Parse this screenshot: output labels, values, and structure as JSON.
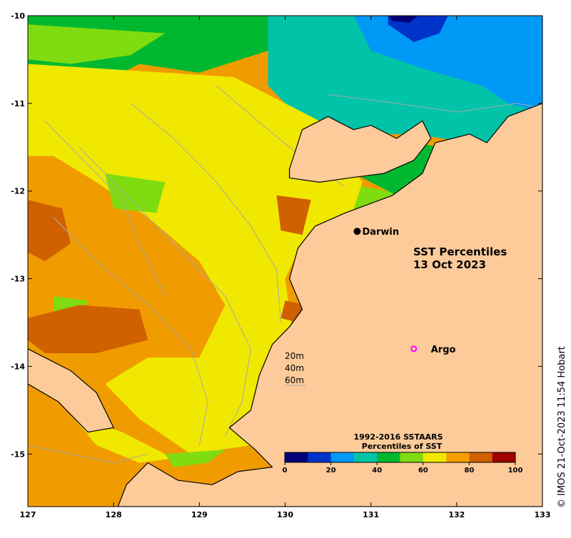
{
  "map": {
    "extent": {
      "lon_min": 127,
      "lon_max": 133,
      "lat_min": -15.6,
      "lat_max": -10
    },
    "land_color": "#fdcb9a",
    "ocean_base_color": "#f09c00",
    "x_ticks": [
      "127",
      "128",
      "129",
      "130",
      "131",
      "132",
      "133"
    ],
    "y_ticks": [
      "-10",
      "-11",
      "-12",
      "-13",
      "-14",
      "-15"
    ],
    "x_tick_values": [
      127,
      128,
      129,
      130,
      131,
      132,
      133
    ],
    "y_tick_values": [
      -10,
      -11,
      -12,
      -13,
      -14,
      -15
    ]
  },
  "title": {
    "line1": "SST Percentiles",
    "line2": "13 Oct 2023"
  },
  "places": {
    "darwin": {
      "label": "Darwin",
      "lon": 130.84,
      "lat": -12.46
    },
    "argo": {
      "label": "Argo",
      "lon": 131.5,
      "lat": -13.8,
      "marker_color": "#ff00ff"
    }
  },
  "depth_legend": {
    "d20": "20m",
    "d40": "40m",
    "d60": "60m"
  },
  "colorbar": {
    "title_line1": "1992-2016 SSTAARS",
    "title_line2": "Percentiles of SST",
    "colors": [
      "#00007a",
      "#0033c8",
      "#0099f5",
      "#00c3a8",
      "#00b830",
      "#7fdc10",
      "#f0e800",
      "#f5a000",
      "#d06000",
      "#a00000"
    ],
    "tick_labels": [
      "0",
      "20",
      "40",
      "60",
      "80",
      "100"
    ],
    "tick_values": [
      0,
      20,
      40,
      60,
      80,
      100
    ]
  },
  "credit": "© IMOS 21-Oct-2023 11:54 Hobart",
  "patches": [
    {
      "color": "#00b830",
      "points": [
        [
          127,
          -10
        ],
        [
          129.9,
          -10
        ],
        [
          129.8,
          -10.4
        ],
        [
          129.0,
          -10.65
        ],
        [
          128.3,
          -10.55
        ],
        [
          127.6,
          -10.9
        ],
        [
          127,
          -10.8
        ]
      ]
    },
    {
      "color": "#7fdc10",
      "points": [
        [
          127,
          -10.1
        ],
        [
          128.6,
          -10.2
        ],
        [
          128.2,
          -10.45
        ],
        [
          127.5,
          -10.55
        ],
        [
          127,
          -10.5
        ]
      ]
    },
    {
      "color": "#00c3a8",
      "points": [
        [
          129.8,
          -10
        ],
        [
          133,
          -10
        ],
        [
          133,
          -11.3
        ],
        [
          132.5,
          -11.5
        ],
        [
          131.5,
          -11.35
        ],
        [
          130.6,
          -11.35
        ],
        [
          130.2,
          -11.2
        ],
        [
          129.8,
          -10.8
        ]
      ]
    },
    {
      "color": "#0099f5",
      "points": [
        [
          130.8,
          -10
        ],
        [
          133,
          -10
        ],
        [
          133,
          -11.1
        ],
        [
          132.6,
          -11.0
        ],
        [
          132.3,
          -10.8
        ],
        [
          131.6,
          -10.6
        ],
        [
          131.0,
          -10.4
        ]
      ]
    },
    {
      "color": "#0033c8",
      "points": [
        [
          131.2,
          -10
        ],
        [
          131.9,
          -10
        ],
        [
          131.8,
          -10.2
        ],
        [
          131.5,
          -10.3
        ],
        [
          131.2,
          -10.1
        ]
      ]
    },
    {
      "color": "#00007a",
      "points": [
        [
          131.2,
          -10
        ],
        [
          131.55,
          -10
        ],
        [
          131.45,
          -10.08
        ],
        [
          131.25,
          -10.06
        ]
      ]
    },
    {
      "color": "#00b830",
      "points": [
        [
          130.5,
          -11.25
        ],
        [
          131.8,
          -11.5
        ],
        [
          132.5,
          -11.6
        ],
        [
          132.8,
          -11.8
        ],
        [
          132.4,
          -12.2
        ],
        [
          131.8,
          -12.25
        ],
        [
          131.3,
          -12.05
        ],
        [
          130.9,
          -11.85
        ],
        [
          130.5,
          -11.6
        ]
      ]
    },
    {
      "color": "#7fdc10",
      "points": [
        [
          130.6,
          -11.9
        ],
        [
          131.2,
          -12.0
        ],
        [
          131.6,
          -12.2
        ],
        [
          131.0,
          -12.35
        ],
        [
          130.6,
          -12.2
        ]
      ]
    },
    {
      "color": "#f0e800",
      "points": [
        [
          127,
          -10.55
        ],
        [
          129.4,
          -10.7
        ],
        [
          130.4,
          -11.2
        ],
        [
          130.9,
          -11.9
        ],
        [
          130.7,
          -12.5
        ],
        [
          130.2,
          -12.6
        ],
        [
          130.0,
          -13.0
        ],
        [
          129.3,
          -13.3
        ],
        [
          129.0,
          -12.8
        ],
        [
          128.4,
          -12.3
        ],
        [
          127.8,
          -11.9
        ],
        [
          127.3,
          -11.6
        ],
        [
          127,
          -11.6
        ]
      ]
    },
    {
      "color": "#f0e800",
      "points": [
        [
          129.3,
          -13.3
        ],
        [
          130.0,
          -13.0
        ],
        [
          130.1,
          -13.7
        ],
        [
          129.8,
          -14.3
        ],
        [
          129.6,
          -14.9
        ],
        [
          128.9,
          -15.0
        ],
        [
          128.3,
          -14.6
        ],
        [
          127.9,
          -14.2
        ],
        [
          128.4,
          -13.9
        ],
        [
          129.0,
          -13.9
        ]
      ]
    },
    {
      "color": "#f0e800",
      "points": [
        [
          127.5,
          -14.55
        ],
        [
          128.1,
          -14.75
        ],
        [
          128.7,
          -15.05
        ],
        [
          128.3,
          -15.1
        ],
        [
          127.8,
          -14.9
        ]
      ]
    },
    {
      "color": "#7fdc10",
      "points": [
        [
          127.9,
          -11.8
        ],
        [
          128.6,
          -11.9
        ],
        [
          128.5,
          -12.25
        ],
        [
          128.0,
          -12.2
        ]
      ]
    },
    {
      "color": "#7fdc10",
      "points": [
        [
          127.3,
          -13.2
        ],
        [
          127.7,
          -13.25
        ],
        [
          127.6,
          -13.45
        ],
        [
          127.3,
          -13.45
        ]
      ]
    },
    {
      "color": "#7fdc10",
      "points": [
        [
          128.6,
          -15.0
        ],
        [
          129.3,
          -14.95
        ],
        [
          129.1,
          -15.1
        ],
        [
          128.7,
          -15.15
        ]
      ]
    },
    {
      "color": "#d06000",
      "points": [
        [
          127,
          -13.45
        ],
        [
          127.6,
          -13.3
        ],
        [
          128.3,
          -13.35
        ],
        [
          128.4,
          -13.7
        ],
        [
          127.8,
          -13.85
        ],
        [
          127.2,
          -13.85
        ],
        [
          127,
          -13.7
        ]
      ]
    },
    {
      "color": "#d06000",
      "points": [
        [
          127,
          -12.1
        ],
        [
          127.4,
          -12.2
        ],
        [
          127.5,
          -12.6
        ],
        [
          127.2,
          -12.8
        ],
        [
          127,
          -12.7
        ]
      ]
    },
    {
      "color": "#d06000",
      "points": [
        [
          129.9,
          -12.05
        ],
        [
          130.3,
          -12.1
        ],
        [
          130.2,
          -12.5
        ],
        [
          129.95,
          -12.45
        ]
      ]
    },
    {
      "color": "#d06000",
      "points": [
        [
          130.0,
          -13.25
        ],
        [
          130.25,
          -13.3
        ],
        [
          130.15,
          -13.5
        ],
        [
          129.95,
          -13.45
        ]
      ]
    }
  ],
  "land_polys": [
    {
      "points": [
        [
          130.05,
          -11.75
        ],
        [
          130.2,
          -11.3
        ],
        [
          130.5,
          -11.15
        ],
        [
          130.8,
          -11.3
        ],
        [
          131.0,
          -11.25
        ],
        [
          131.3,
          -11.4
        ],
        [
          131.6,
          -11.2
        ],
        [
          131.7,
          -11.4
        ],
        [
          131.5,
          -11.65
        ],
        [
          131.15,
          -11.8
        ],
        [
          130.75,
          -11.85
        ],
        [
          130.4,
          -11.9
        ],
        [
          130.05,
          -11.85
        ]
      ]
    },
    {
      "points": [
        [
          133,
          -11.0
        ],
        [
          132.6,
          -11.15
        ],
        [
          132.35,
          -11.45
        ],
        [
          132.15,
          -11.35
        ],
        [
          131.75,
          -11.45
        ],
        [
          131.6,
          -11.8
        ],
        [
          131.25,
          -12.05
        ],
        [
          130.7,
          -12.25
        ],
        [
          130.35,
          -12.4
        ],
        [
          130.15,
          -12.65
        ],
        [
          130.05,
          -13.0
        ],
        [
          130.2,
          -13.35
        ],
        [
          130.05,
          -13.55
        ],
        [
          129.85,
          -13.75
        ],
        [
          129.7,
          -14.1
        ],
        [
          129.6,
          -14.5
        ],
        [
          129.35,
          -14.7
        ],
        [
          129.65,
          -14.95
        ],
        [
          129.85,
          -15.15
        ],
        [
          129.45,
          -15.2
        ],
        [
          129.15,
          -15.35
        ],
        [
          128.75,
          -15.3
        ],
        [
          128.4,
          -15.1
        ],
        [
          128.15,
          -15.35
        ],
        [
          128.05,
          -15.6
        ],
        [
          133,
          -15.6
        ]
      ]
    },
    {
      "points": [
        [
          127,
          -13.8
        ],
        [
          127.5,
          -14.05
        ],
        [
          127.8,
          -14.3
        ],
        [
          128.0,
          -14.7
        ],
        [
          127.7,
          -14.75
        ],
        [
          127.35,
          -14.4
        ],
        [
          127,
          -14.2
        ]
      ]
    }
  ],
  "depth_contours": [
    {
      "points": [
        [
          127.6,
          -11.5
        ],
        [
          128.0,
          -11.9
        ],
        [
          128.5,
          -12.4
        ],
        [
          128.9,
          -12.8
        ],
        [
          129.3,
          -13.2
        ],
        [
          129.6,
          -13.8
        ],
        [
          129.5,
          -14.4
        ],
        [
          129.3,
          -14.8
        ]
      ]
    },
    {
      "points": [
        [
          127.3,
          -12.3
        ],
        [
          127.8,
          -12.8
        ],
        [
          128.4,
          -13.3
        ],
        [
          128.9,
          -13.8
        ],
        [
          129.1,
          -14.4
        ],
        [
          129.0,
          -14.9
        ]
      ]
    },
    {
      "points": [
        [
          128.2,
          -11.0
        ],
        [
          128.7,
          -11.4
        ],
        [
          129.2,
          -11.9
        ],
        [
          129.6,
          -12.4
        ],
        [
          129.9,
          -12.9
        ],
        [
          129.95,
          -13.5
        ]
      ]
    },
    {
      "points": [
        [
          129.2,
          -10.8
        ],
        [
          129.8,
          -11.3
        ],
        [
          130.3,
          -11.7
        ],
        [
          130.7,
          -11.95
        ]
      ]
    },
    {
      "points": [
        [
          130.5,
          -10.9
        ],
        [
          131.3,
          -11.0
        ],
        [
          132.0,
          -11.1
        ],
        [
          132.7,
          -11.0
        ],
        [
          133,
          -11.05
        ]
      ]
    },
    {
      "points": [
        [
          127,
          -14.9
        ],
        [
          127.5,
          -15.0
        ],
        [
          128.0,
          -15.1
        ],
        [
          128.4,
          -15.0
        ]
      ]
    },
    {
      "points": [
        [
          127.2,
          -11.2
        ],
        [
          127.6,
          -11.6
        ],
        [
          128.1,
          -12.1
        ],
        [
          128.3,
          -12.6
        ],
        [
          128.6,
          -13.2
        ]
      ]
    }
  ]
}
